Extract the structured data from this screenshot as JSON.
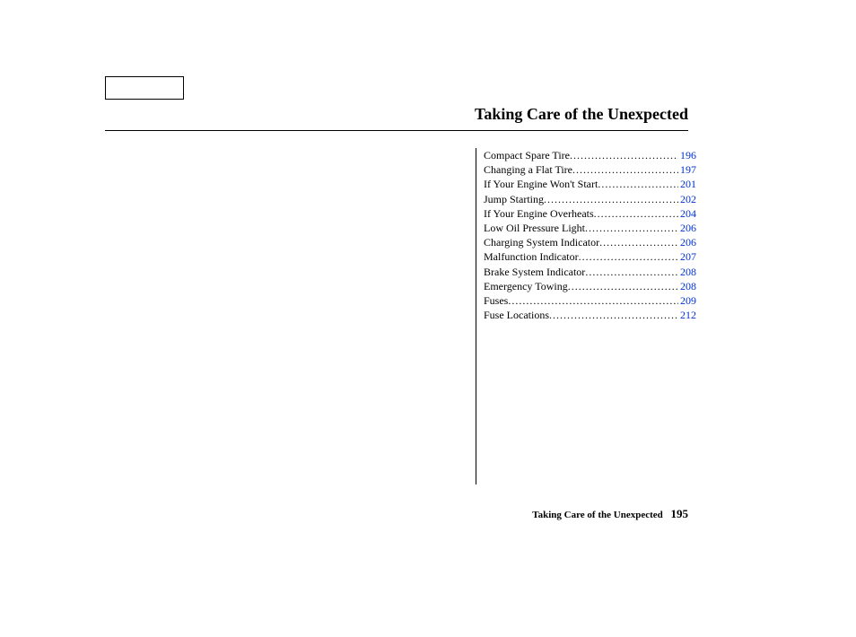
{
  "header": {
    "title": "Taking Care of the Unexpected"
  },
  "toc": {
    "items": [
      {
        "label": "Compact Spare Tire",
        "page": "196"
      },
      {
        "label": "Changing a Flat Tire ",
        "page": "197"
      },
      {
        "label": "If Your Engine Won't Start",
        "page": "201"
      },
      {
        "label": "Jump Starting ",
        "page": "202"
      },
      {
        "label": "If Your Engine Overheats",
        "page": "204"
      },
      {
        "label": "Low Oil Pressure Light",
        "page": "206"
      },
      {
        "label": "Charging System Indicator",
        "page": "206"
      },
      {
        "label": "Malfunction Indicator ",
        "page": "207"
      },
      {
        "label": "Brake System Indicator ",
        "page": "208"
      },
      {
        "label": "Emergency Towing ",
        "page": "208"
      },
      {
        "label": "Fuses ",
        "page": "209"
      },
      {
        "label": "Fuse Locations",
        "page": "212"
      }
    ]
  },
  "footer": {
    "section": "Taking Care of the Unexpected",
    "page_number": "195"
  }
}
